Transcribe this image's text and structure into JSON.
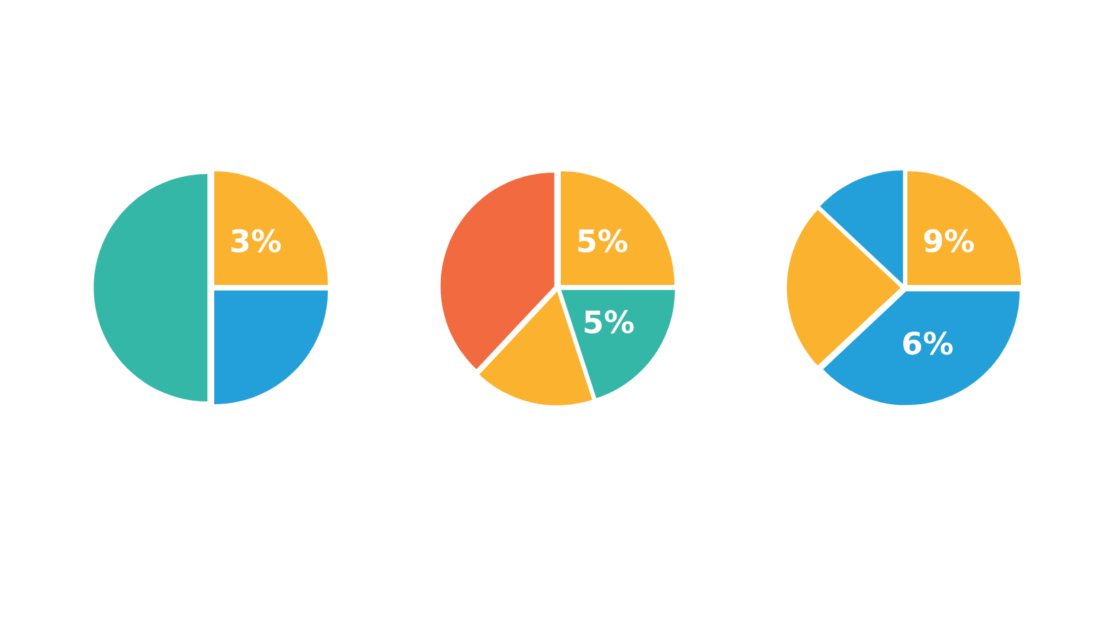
{
  "chart_data": [
    {
      "type": "pie",
      "categories": [
        null,
        null,
        null
      ],
      "values": [
        25,
        25,
        50
      ],
      "colors": [
        "#fbb22f",
        "#239fd9",
        "#34b7a7"
      ],
      "annotations": [
        "3%"
      ]
    },
    {
      "type": "pie",
      "categories": [
        null,
        null,
        null,
        null
      ],
      "values": [
        25,
        20,
        17,
        38
      ],
      "colors": [
        "#fbb22f",
        "#34b7a7",
        "#fbb22f",
        "#f26a3f"
      ],
      "annotations": [
        "5%",
        "5%"
      ]
    },
    {
      "type": "pie",
      "categories": [
        null,
        null,
        null,
        null
      ],
      "values": [
        25,
        38,
        24,
        13
      ],
      "colors": [
        "#fbb22f",
        "#239fd9",
        "#fbb22f",
        "#239fd9"
      ],
      "annotations": [
        "9%",
        "6%"
      ]
    }
  ]
}
